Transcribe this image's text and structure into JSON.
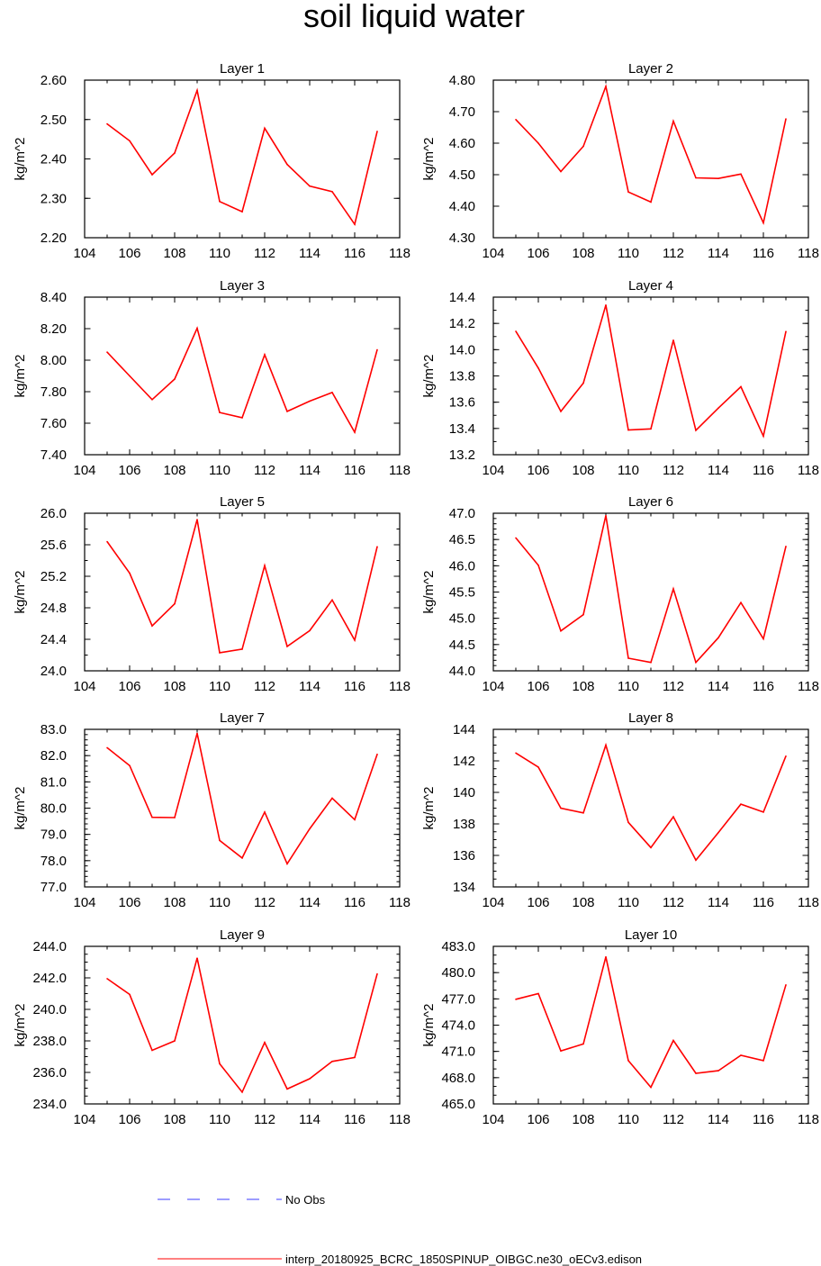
{
  "figure": {
    "title": "soil liquid water",
    "legend": {
      "entries": [
        {
          "label": "No Obs",
          "style": "dashed",
          "color": "#3b3bff"
        },
        {
          "label": "interp_20180925_BCRC_1850SPINUP_OIBGC.ne30_oECv3.edison",
          "style": "solid",
          "color": "#ff0000"
        }
      ]
    }
  },
  "colors": {
    "model_line": "#ff0000",
    "obs_line": "#3b3bff",
    "axis": "#000000"
  },
  "chart_data": [
    {
      "type": "line",
      "title": "Layer 1",
      "xlabel": "",
      "ylabel": "kg/m^2",
      "xlim": [
        104,
        118
      ],
      "xticks": [
        104,
        106,
        108,
        110,
        112,
        114,
        116,
        118
      ],
      "ylim": [
        2.2,
        2.6
      ],
      "yticks": [
        "2.20",
        "2.30",
        "2.40",
        "2.50",
        "2.60"
      ],
      "ystep": 0.1,
      "x": [
        105,
        106,
        107,
        108,
        109,
        110,
        111,
        112,
        113,
        114,
        115,
        116,
        117
      ],
      "series": [
        {
          "name": "interp_20180925_BCRC_1850SPINUP_OIBGC.ne30_oECv3.edison",
          "values": [
            2.489,
            2.446,
            2.36,
            2.415,
            2.574,
            2.292,
            2.266,
            2.478,
            2.386,
            2.331,
            2.317,
            2.234,
            2.47
          ]
        }
      ]
    },
    {
      "type": "line",
      "title": "Layer 2",
      "xlabel": "",
      "ylabel": "kg/m^2",
      "xlim": [
        104,
        118
      ],
      "xticks": [
        104,
        106,
        108,
        110,
        112,
        114,
        116,
        118
      ],
      "ylim": [
        4.3,
        4.8
      ],
      "yticks": [
        "4.30",
        "4.40",
        "4.50",
        "4.60",
        "4.70",
        "4.80"
      ],
      "ystep": 0.1,
      "x": [
        105,
        106,
        107,
        108,
        109,
        110,
        111,
        112,
        113,
        114,
        115,
        116,
        117
      ],
      "series": [
        {
          "name": "interp_20180925_BCRC_1850SPINUP_OIBGC.ne30_oECv3.edison",
          "values": [
            4.675,
            4.6,
            4.51,
            4.59,
            4.78,
            4.445,
            4.413,
            4.67,
            4.49,
            4.488,
            4.502,
            4.347,
            4.677
          ]
        }
      ]
    },
    {
      "type": "line",
      "title": "Layer 3",
      "xlabel": "",
      "ylabel": "kg/m^2",
      "xlim": [
        104,
        118
      ],
      "xticks": [
        104,
        106,
        108,
        110,
        112,
        114,
        116,
        118
      ],
      "ylim": [
        7.4,
        8.4
      ],
      "yticks": [
        "7.40",
        "7.60",
        "7.80",
        "8.00",
        "8.20",
        "8.40"
      ],
      "ystep": 0.2,
      "x": [
        105,
        106,
        107,
        108,
        109,
        110,
        111,
        112,
        113,
        114,
        115,
        116,
        117
      ],
      "series": [
        {
          "name": "interp_20180925_BCRC_1850SPINUP_OIBGC.ne30_oECv3.edison",
          "values": [
            8.051,
            7.9,
            7.75,
            7.88,
            8.203,
            7.668,
            7.635,
            8.035,
            7.675,
            7.74,
            7.795,
            7.543,
            8.066
          ]
        }
      ]
    },
    {
      "type": "line",
      "title": "Layer 4",
      "xlabel": "",
      "ylabel": "kg/m^2",
      "xlim": [
        104,
        118
      ],
      "xticks": [
        104,
        106,
        108,
        110,
        112,
        114,
        116,
        118
      ],
      "ylim": [
        13.2,
        14.4
      ],
      "yticks": [
        "13.2",
        "13.4",
        "13.6",
        "13.8",
        "14.0",
        "14.2",
        "14.4"
      ],
      "ystep": 0.1,
      "x": [
        105,
        106,
        107,
        108,
        109,
        110,
        111,
        112,
        113,
        114,
        115,
        116,
        117
      ],
      "series": [
        {
          "name": "interp_20180925_BCRC_1850SPINUP_OIBGC.ne30_oECv3.edison",
          "values": [
            14.14,
            13.86,
            13.53,
            13.745,
            14.34,
            13.388,
            13.397,
            14.072,
            13.386,
            13.555,
            13.718,
            13.342,
            14.138
          ]
        }
      ]
    },
    {
      "type": "line",
      "title": "Layer 5",
      "xlabel": "",
      "ylabel": "kg/m^2",
      "xlim": [
        104,
        118
      ],
      "xticks": [
        104,
        106,
        108,
        110,
        112,
        114,
        116,
        118
      ],
      "ylim": [
        24.0,
        26.0
      ],
      "yticks": [
        "24.0",
        "24.4",
        "24.8",
        "25.2",
        "25.6",
        "26.0"
      ],
      "ystep": 0.2,
      "x": [
        105,
        106,
        107,
        108,
        109,
        110,
        111,
        112,
        113,
        114,
        115,
        116,
        117
      ],
      "series": [
        {
          "name": "interp_20180925_BCRC_1850SPINUP_OIBGC.ne30_oECv3.edison",
          "values": [
            25.64,
            25.24,
            24.57,
            24.85,
            25.92,
            24.23,
            24.275,
            25.335,
            24.31,
            24.51,
            24.9,
            24.39,
            25.575
          ]
        }
      ]
    },
    {
      "type": "line",
      "title": "Layer 6",
      "xlabel": "",
      "ylabel": "kg/m^2",
      "xlim": [
        104,
        118
      ],
      "xticks": [
        104,
        106,
        108,
        110,
        112,
        114,
        116,
        118
      ],
      "ylim": [
        44.0,
        47.0
      ],
      "yticks": [
        "44.0",
        "44.5",
        "45.0",
        "45.5",
        "46.0",
        "46.5",
        "47.0"
      ],
      "ystep": 0.1,
      "x": [
        105,
        106,
        107,
        108,
        109,
        110,
        111,
        112,
        113,
        114,
        115,
        116,
        117
      ],
      "series": [
        {
          "name": "interp_20180925_BCRC_1850SPINUP_OIBGC.ne30_oECv3.edison",
          "values": [
            46.53,
            46.01,
            44.76,
            45.07,
            46.955,
            44.24,
            44.16,
            45.56,
            44.16,
            44.63,
            45.3,
            44.61,
            46.37
          ]
        }
      ]
    },
    {
      "type": "line",
      "title": "Layer 7",
      "xlabel": "",
      "ylabel": "kg/m^2",
      "xlim": [
        104,
        118
      ],
      "xticks": [
        104,
        106,
        108,
        110,
        112,
        114,
        116,
        118
      ],
      "ylim": [
        77.0,
        83.0
      ],
      "yticks": [
        "77.0",
        "78.0",
        "79.0",
        "80.0",
        "81.0",
        "82.0",
        "83.0"
      ],
      "ystep": 0.2,
      "x": [
        105,
        106,
        107,
        108,
        109,
        110,
        111,
        112,
        113,
        114,
        115,
        116,
        117
      ],
      "series": [
        {
          "name": "interp_20180925_BCRC_1850SPINUP_OIBGC.ne30_oECv3.edison",
          "values": [
            82.3,
            81.62,
            79.65,
            79.64,
            82.85,
            78.77,
            78.1,
            79.85,
            77.88,
            79.21,
            80.38,
            79.56,
            82.05
          ]
        }
      ]
    },
    {
      "type": "line",
      "title": "Layer 8",
      "xlabel": "",
      "ylabel": "kg/m^2",
      "xlim": [
        104,
        118
      ],
      "xticks": [
        104,
        106,
        108,
        110,
        112,
        114,
        116,
        118
      ],
      "ylim": [
        134,
        144
      ],
      "yticks": [
        "134",
        "136",
        "138",
        "140",
        "142",
        "144"
      ],
      "ystep": 0.5,
      "x": [
        105,
        106,
        107,
        108,
        109,
        110,
        111,
        112,
        113,
        114,
        115,
        116,
        117
      ],
      "series": [
        {
          "name": "interp_20180925_BCRC_1850SPINUP_OIBGC.ne30_oECv3.edison",
          "values": [
            142.5,
            141.6,
            139.0,
            138.7,
            143.0,
            138.1,
            136.5,
            138.45,
            135.7,
            137.45,
            139.25,
            138.75,
            142.3
          ]
        }
      ]
    },
    {
      "type": "line",
      "title": "Layer 9",
      "xlabel": "",
      "ylabel": "kg/m^2",
      "xlim": [
        104,
        118
      ],
      "xticks": [
        104,
        106,
        108,
        110,
        112,
        114,
        116,
        118
      ],
      "ylim": [
        234.0,
        244.0
      ],
      "yticks": [
        "234.0",
        "236.0",
        "238.0",
        "240.0",
        "242.0",
        "244.0"
      ],
      "ystep": 0.5,
      "x": [
        105,
        106,
        107,
        108,
        109,
        110,
        111,
        112,
        113,
        114,
        115,
        116,
        117
      ],
      "series": [
        {
          "name": "interp_20180925_BCRC_1850SPINUP_OIBGC.ne30_oECv3.edison",
          "values": [
            241.95,
            240.95,
            237.4,
            238.0,
            243.25,
            236.55,
            234.75,
            237.9,
            234.95,
            235.6,
            236.7,
            236.95,
            242.25
          ]
        }
      ]
    },
    {
      "type": "line",
      "title": "Layer 10",
      "xlabel": "",
      "ylabel": "kg/m^2",
      "xlim": [
        104,
        118
      ],
      "xticks": [
        104,
        106,
        108,
        110,
        112,
        114,
        116,
        118
      ],
      "ylim": [
        465.0,
        483.0
      ],
      "yticks": [
        "465.0",
        "468.0",
        "471.0",
        "474.0",
        "477.0",
        "480.0",
        "483.0"
      ],
      "ystep": 1.0,
      "x": [
        105,
        106,
        107,
        108,
        109,
        110,
        111,
        112,
        113,
        114,
        115,
        116,
        117
      ],
      "series": [
        {
          "name": "interp_20180925_BCRC_1850SPINUP_OIBGC.ne30_oECv3.edison",
          "values": [
            476.95,
            477.6,
            471.05,
            471.85,
            481.8,
            469.95,
            466.9,
            472.25,
            468.5,
            468.8,
            470.55,
            469.95,
            478.6
          ]
        }
      ]
    }
  ]
}
